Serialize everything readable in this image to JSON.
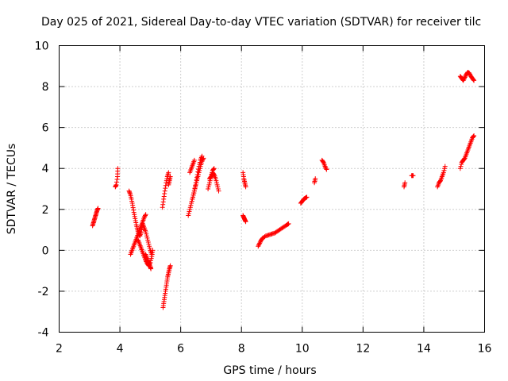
{
  "chart_data": {
    "type": "scatter",
    "title": "Day 025 of 2021, Sidereal Day-to-day VTEC variation (SDTVAR) for receiver tilc",
    "xlabel": "GPS time / hours",
    "ylabel": "SDTVAR / TECUs",
    "xlim": [
      2,
      16
    ],
    "ylim": [
      -4,
      10
    ],
    "xticks": [
      2,
      4,
      6,
      8,
      10,
      12,
      14,
      16
    ],
    "yticks": [
      -4,
      -2,
      0,
      2,
      4,
      6,
      8,
      10
    ],
    "xtick_labels": [
      "2",
      "4",
      "6",
      "8",
      "10",
      "12",
      "14",
      "16"
    ],
    "ytick_labels": [
      "-4",
      "-2",
      "0",
      "2",
      "4",
      "6",
      "8",
      "10"
    ],
    "grid": true,
    "marker": "+",
    "series": [
      {
        "name": "SDTVAR",
        "color": "#ff0000",
        "segments": [
          [
            [
              3.1,
              1.2
            ],
            [
              3.13,
              1.35
            ],
            [
              3.16,
              1.5
            ],
            [
              3.19,
              1.65
            ],
            [
              3.22,
              1.8
            ],
            [
              3.25,
              1.95
            ],
            [
              3.28,
              2.05
            ]
          ],
          [
            [
              3.85,
              3.1
            ],
            [
              3.88,
              3.2
            ],
            [
              3.92,
              3.6
            ],
            [
              3.93,
              4.0
            ]
          ],
          [
            [
              4.3,
              2.9
            ],
            [
              4.34,
              2.75
            ],
            [
              4.38,
              2.5
            ],
            [
              4.42,
              2.2
            ],
            [
              4.46,
              1.85
            ],
            [
              4.5,
              1.55
            ],
            [
              4.54,
              1.25
            ],
            [
              4.58,
              1.0
            ],
            [
              4.62,
              0.8
            ],
            [
              4.66,
              0.7
            ],
            [
              4.7,
              0.9
            ],
            [
              4.74,
              1.2
            ]
          ],
          [
            [
              4.35,
              -0.2
            ],
            [
              4.4,
              0.0
            ],
            [
              4.45,
              0.2
            ],
            [
              4.5,
              0.4
            ],
            [
              4.55,
              0.6
            ],
            [
              4.6,
              0.8
            ],
            [
              4.65,
              1.0
            ],
            [
              4.7,
              1.2
            ],
            [
              4.75,
              1.4
            ],
            [
              4.8,
              1.6
            ],
            [
              4.85,
              1.75
            ]
          ],
          [
            [
              4.6,
              0.5
            ],
            [
              4.65,
              0.3
            ],
            [
              4.7,
              0.1
            ],
            [
              4.75,
              -0.1
            ],
            [
              4.8,
              -0.3
            ],
            [
              4.85,
              -0.5
            ],
            [
              4.9,
              -0.65
            ],
            [
              4.95,
              -0.75
            ],
            [
              5.0,
              -0.6
            ],
            [
              5.05,
              -0.3
            ],
            [
              5.08,
              0.0
            ]
          ],
          [
            [
              4.75,
              1.3
            ],
            [
              4.8,
              1.1
            ],
            [
              4.85,
              0.9
            ],
            [
              4.9,
              0.6
            ],
            [
              4.95,
              0.3
            ],
            [
              5.0,
              0.0
            ],
            [
              5.05,
              -0.2
            ]
          ],
          [
            [
              4.85,
              -0.2
            ],
            [
              4.9,
              -0.4
            ],
            [
              4.95,
              -0.6
            ],
            [
              5.0,
              -0.8
            ],
            [
              5.02,
              -0.9
            ]
          ],
          [
            [
              5.42,
              -2.8
            ],
            [
              5.45,
              -2.5
            ],
            [
              5.48,
              -2.2
            ],
            [
              5.51,
              -1.9
            ],
            [
              5.54,
              -1.6
            ],
            [
              5.57,
              -1.3
            ],
            [
              5.6,
              -1.1
            ],
            [
              5.63,
              -0.9
            ],
            [
              5.66,
              -0.75
            ]
          ],
          [
            [
              5.4,
              2.1
            ],
            [
              5.44,
              2.5
            ],
            [
              5.48,
              2.9
            ],
            [
              5.52,
              3.3
            ],
            [
              5.56,
              3.6
            ],
            [
              5.6,
              3.8
            ]
          ],
          [
            [
              5.6,
              3.2
            ],
            [
              5.63,
              3.4
            ],
            [
              5.66,
              3.6
            ]
          ],
          [
            [
              6.25,
              1.7
            ],
            [
              6.3,
              2.0
            ],
            [
              6.35,
              2.3
            ],
            [
              6.4,
              2.6
            ],
            [
              6.45,
              2.9
            ],
            [
              6.5,
              3.3
            ],
            [
              6.55,
              3.7
            ],
            [
              6.6,
              4.1
            ],
            [
              6.65,
              4.4
            ],
            [
              6.7,
              4.6
            ]
          ],
          [
            [
              6.35,
              2.3
            ],
            [
              6.4,
              2.6
            ],
            [
              6.45,
              2.9
            ],
            [
              6.5,
              3.2
            ],
            [
              6.55,
              3.5
            ],
            [
              6.6,
              3.8
            ],
            [
              6.65,
              4.1
            ],
            [
              6.7,
              4.35
            ],
            [
              6.75,
              4.5
            ]
          ],
          [
            [
              6.3,
              3.8
            ],
            [
              6.35,
              4.0
            ],
            [
              6.4,
              4.2
            ],
            [
              6.45,
              4.4
            ]
          ],
          [
            [
              6.9,
              3.0
            ],
            [
              6.95,
              3.3
            ],
            [
              7.0,
              3.6
            ],
            [
              7.05,
              3.9
            ],
            [
              7.1,
              4.0
            ]
          ],
          [
            [
              6.95,
              3.5
            ],
            [
              7.0,
              3.6
            ],
            [
              7.05,
              3.8
            ],
            [
              7.1,
              3.7
            ],
            [
              7.15,
              3.5
            ],
            [
              7.2,
              3.2
            ],
            [
              7.25,
              2.9
            ]
          ],
          [
            [
              8.05,
              3.8
            ],
            [
              8.08,
              3.5
            ],
            [
              8.11,
              3.3
            ],
            [
              8.14,
              3.1
            ]
          ],
          [
            [
              8.05,
              1.7
            ],
            [
              8.08,
              1.6
            ],
            [
              8.11,
              1.5
            ],
            [
              8.14,
              1.4
            ]
          ],
          [
            [
              8.55,
              0.2
            ],
            [
              8.6,
              0.35
            ],
            [
              8.65,
              0.5
            ],
            [
              8.7,
              0.6
            ],
            [
              8.8,
              0.7
            ],
            [
              8.9,
              0.75
            ],
            [
              9.0,
              0.8
            ],
            [
              9.1,
              0.85
            ],
            [
              9.2,
              0.95
            ],
            [
              9.3,
              1.05
            ],
            [
              9.4,
              1.15
            ],
            [
              9.5,
              1.25
            ],
            [
              9.55,
              1.3
            ]
          ],
          [
            [
              9.95,
              2.3
            ],
            [
              10.0,
              2.4
            ],
            [
              10.05,
              2.5
            ],
            [
              10.1,
              2.55
            ],
            [
              10.15,
              2.6
            ]
          ],
          [
            [
              10.4,
              3.3
            ],
            [
              10.43,
              3.5
            ]
          ],
          [
            [
              10.65,
              4.4
            ],
            [
              10.7,
              4.3
            ],
            [
              10.75,
              4.1
            ],
            [
              10.8,
              3.95
            ]
          ],
          [
            [
              13.35,
              3.1
            ],
            [
              13.38,
              3.3
            ]
          ],
          [
            [
              13.6,
              3.65
            ],
            [
              13.65,
              3.65
            ]
          ],
          [
            [
              14.45,
              3.1
            ],
            [
              14.5,
              3.3
            ],
            [
              14.55,
              3.4
            ],
            [
              14.6,
              3.6
            ],
            [
              14.65,
              3.8
            ],
            [
              14.7,
              4.1
            ]
          ],
          [
            [
              15.2,
              4.0
            ],
            [
              15.25,
              4.3
            ],
            [
              15.3,
              4.4
            ],
            [
              15.35,
              4.5
            ],
            [
              15.4,
              4.7
            ],
            [
              15.45,
              4.9
            ],
            [
              15.5,
              5.1
            ],
            [
              15.55,
              5.3
            ],
            [
              15.6,
              5.5
            ],
            [
              15.65,
              5.6
            ]
          ],
          [
            [
              15.2,
              8.5
            ],
            [
              15.25,
              8.4
            ],
            [
              15.3,
              8.3
            ],
            [
              15.35,
              8.45
            ],
            [
              15.4,
              8.6
            ],
            [
              15.45,
              8.7
            ],
            [
              15.5,
              8.65
            ],
            [
              15.55,
              8.5
            ],
            [
              15.6,
              8.4
            ],
            [
              15.65,
              8.3
            ]
          ]
        ]
      }
    ]
  }
}
